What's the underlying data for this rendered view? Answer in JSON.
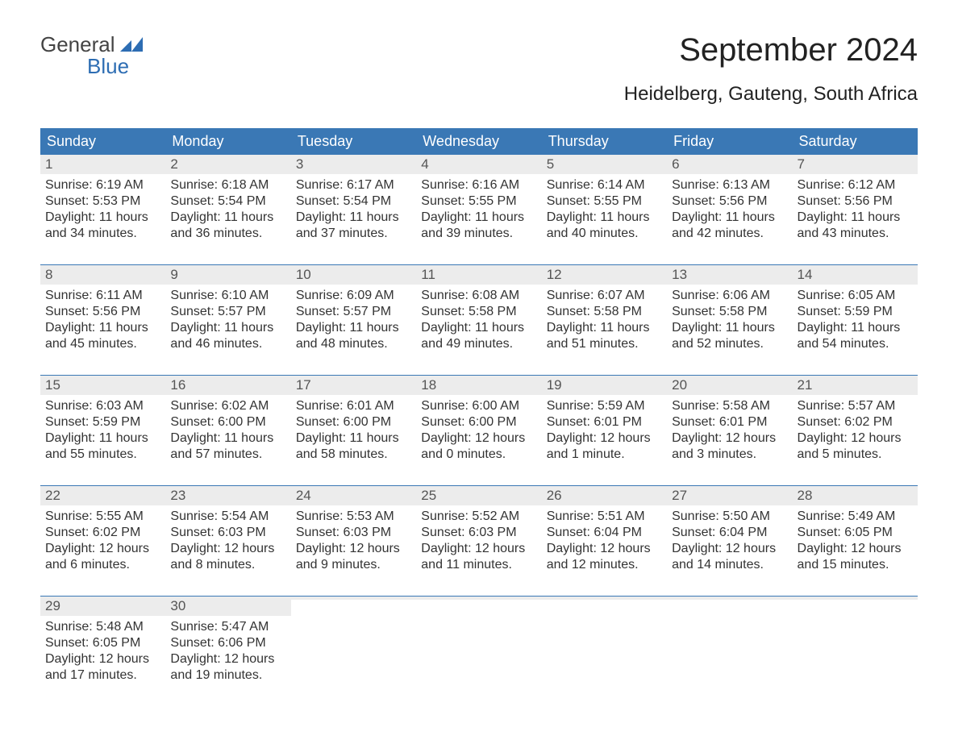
{
  "logo": {
    "word1": "General",
    "word2": "Blue",
    "flag_color": "#2d6db3",
    "text_color_gray": "#444444",
    "text_color_blue": "#2d6db3"
  },
  "header": {
    "title": "September 2024",
    "location": "Heidelberg, Gauteng, South Africa",
    "title_fontsize": 40,
    "location_fontsize": 24
  },
  "colors": {
    "header_bg": "#3a78b5",
    "header_text": "#ffffff",
    "week_rule": "#3a78b5",
    "daynum_bg": "#ececec",
    "daynum_text": "#555555",
    "body_text": "#333333",
    "page_bg": "#ffffff"
  },
  "day_headers": [
    "Sunday",
    "Monday",
    "Tuesday",
    "Wednesday",
    "Thursday",
    "Friday",
    "Saturday"
  ],
  "weeks": [
    [
      {
        "num": "1",
        "sunrise": "Sunrise: 6:19 AM",
        "sunset": "Sunset: 5:53 PM",
        "dl1": "Daylight: 11 hours",
        "dl2": "and 34 minutes."
      },
      {
        "num": "2",
        "sunrise": "Sunrise: 6:18 AM",
        "sunset": "Sunset: 5:54 PM",
        "dl1": "Daylight: 11 hours",
        "dl2": "and 36 minutes."
      },
      {
        "num": "3",
        "sunrise": "Sunrise: 6:17 AM",
        "sunset": "Sunset: 5:54 PM",
        "dl1": "Daylight: 11 hours",
        "dl2": "and 37 minutes."
      },
      {
        "num": "4",
        "sunrise": "Sunrise: 6:16 AM",
        "sunset": "Sunset: 5:55 PM",
        "dl1": "Daylight: 11 hours",
        "dl2": "and 39 minutes."
      },
      {
        "num": "5",
        "sunrise": "Sunrise: 6:14 AM",
        "sunset": "Sunset: 5:55 PM",
        "dl1": "Daylight: 11 hours",
        "dl2": "and 40 minutes."
      },
      {
        "num": "6",
        "sunrise": "Sunrise: 6:13 AM",
        "sunset": "Sunset: 5:56 PM",
        "dl1": "Daylight: 11 hours",
        "dl2": "and 42 minutes."
      },
      {
        "num": "7",
        "sunrise": "Sunrise: 6:12 AM",
        "sunset": "Sunset: 5:56 PM",
        "dl1": "Daylight: 11 hours",
        "dl2": "and 43 minutes."
      }
    ],
    [
      {
        "num": "8",
        "sunrise": "Sunrise: 6:11 AM",
        "sunset": "Sunset: 5:56 PM",
        "dl1": "Daylight: 11 hours",
        "dl2": "and 45 minutes."
      },
      {
        "num": "9",
        "sunrise": "Sunrise: 6:10 AM",
        "sunset": "Sunset: 5:57 PM",
        "dl1": "Daylight: 11 hours",
        "dl2": "and 46 minutes."
      },
      {
        "num": "10",
        "sunrise": "Sunrise: 6:09 AM",
        "sunset": "Sunset: 5:57 PM",
        "dl1": "Daylight: 11 hours",
        "dl2": "and 48 minutes."
      },
      {
        "num": "11",
        "sunrise": "Sunrise: 6:08 AM",
        "sunset": "Sunset: 5:58 PM",
        "dl1": "Daylight: 11 hours",
        "dl2": "and 49 minutes."
      },
      {
        "num": "12",
        "sunrise": "Sunrise: 6:07 AM",
        "sunset": "Sunset: 5:58 PM",
        "dl1": "Daylight: 11 hours",
        "dl2": "and 51 minutes."
      },
      {
        "num": "13",
        "sunrise": "Sunrise: 6:06 AM",
        "sunset": "Sunset: 5:58 PM",
        "dl1": "Daylight: 11 hours",
        "dl2": "and 52 minutes."
      },
      {
        "num": "14",
        "sunrise": "Sunrise: 6:05 AM",
        "sunset": "Sunset: 5:59 PM",
        "dl1": "Daylight: 11 hours",
        "dl2": "and 54 minutes."
      }
    ],
    [
      {
        "num": "15",
        "sunrise": "Sunrise: 6:03 AM",
        "sunset": "Sunset: 5:59 PM",
        "dl1": "Daylight: 11 hours",
        "dl2": "and 55 minutes."
      },
      {
        "num": "16",
        "sunrise": "Sunrise: 6:02 AM",
        "sunset": "Sunset: 6:00 PM",
        "dl1": "Daylight: 11 hours",
        "dl2": "and 57 minutes."
      },
      {
        "num": "17",
        "sunrise": "Sunrise: 6:01 AM",
        "sunset": "Sunset: 6:00 PM",
        "dl1": "Daylight: 11 hours",
        "dl2": "and 58 minutes."
      },
      {
        "num": "18",
        "sunrise": "Sunrise: 6:00 AM",
        "sunset": "Sunset: 6:00 PM",
        "dl1": "Daylight: 12 hours",
        "dl2": "and 0 minutes."
      },
      {
        "num": "19",
        "sunrise": "Sunrise: 5:59 AM",
        "sunset": "Sunset: 6:01 PM",
        "dl1": "Daylight: 12 hours",
        "dl2": "and 1 minute."
      },
      {
        "num": "20",
        "sunrise": "Sunrise: 5:58 AM",
        "sunset": "Sunset: 6:01 PM",
        "dl1": "Daylight: 12 hours",
        "dl2": "and 3 minutes."
      },
      {
        "num": "21",
        "sunrise": "Sunrise: 5:57 AM",
        "sunset": "Sunset: 6:02 PM",
        "dl1": "Daylight: 12 hours",
        "dl2": "and 5 minutes."
      }
    ],
    [
      {
        "num": "22",
        "sunrise": "Sunrise: 5:55 AM",
        "sunset": "Sunset: 6:02 PM",
        "dl1": "Daylight: 12 hours",
        "dl2": "and 6 minutes."
      },
      {
        "num": "23",
        "sunrise": "Sunrise: 5:54 AM",
        "sunset": "Sunset: 6:03 PM",
        "dl1": "Daylight: 12 hours",
        "dl2": "and 8 minutes."
      },
      {
        "num": "24",
        "sunrise": "Sunrise: 5:53 AM",
        "sunset": "Sunset: 6:03 PM",
        "dl1": "Daylight: 12 hours",
        "dl2": "and 9 minutes."
      },
      {
        "num": "25",
        "sunrise": "Sunrise: 5:52 AM",
        "sunset": "Sunset: 6:03 PM",
        "dl1": "Daylight: 12 hours",
        "dl2": "and 11 minutes."
      },
      {
        "num": "26",
        "sunrise": "Sunrise: 5:51 AM",
        "sunset": "Sunset: 6:04 PM",
        "dl1": "Daylight: 12 hours",
        "dl2": "and 12 minutes."
      },
      {
        "num": "27",
        "sunrise": "Sunrise: 5:50 AM",
        "sunset": "Sunset: 6:04 PM",
        "dl1": "Daylight: 12 hours",
        "dl2": "and 14 minutes."
      },
      {
        "num": "28",
        "sunrise": "Sunrise: 5:49 AM",
        "sunset": "Sunset: 6:05 PM",
        "dl1": "Daylight: 12 hours",
        "dl2": "and 15 minutes."
      }
    ],
    [
      {
        "num": "29",
        "sunrise": "Sunrise: 5:48 AM",
        "sunset": "Sunset: 6:05 PM",
        "dl1": "Daylight: 12 hours",
        "dl2": "and 17 minutes."
      },
      {
        "num": "30",
        "sunrise": "Sunrise: 5:47 AM",
        "sunset": "Sunset: 6:06 PM",
        "dl1": "Daylight: 12 hours",
        "dl2": "and 19 minutes."
      },
      {
        "num": "",
        "sunrise": "",
        "sunset": "",
        "dl1": "",
        "dl2": ""
      },
      {
        "num": "",
        "sunrise": "",
        "sunset": "",
        "dl1": "",
        "dl2": ""
      },
      {
        "num": "",
        "sunrise": "",
        "sunset": "",
        "dl1": "",
        "dl2": ""
      },
      {
        "num": "",
        "sunrise": "",
        "sunset": "",
        "dl1": "",
        "dl2": ""
      },
      {
        "num": "",
        "sunrise": "",
        "sunset": "",
        "dl1": "",
        "dl2": ""
      }
    ]
  ]
}
